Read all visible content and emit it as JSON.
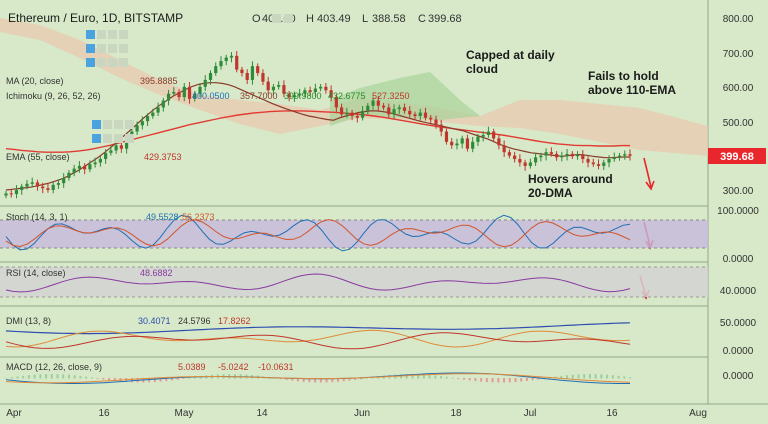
{
  "header": {
    "title": "Ethereum / Euro, 1D, BITSTAMP",
    "ohlc": [
      {
        "k": "O",
        "v": "401.00"
      },
      {
        "k": "H",
        "v": "403.49"
      },
      {
        "k": "L",
        "v": "388.58"
      },
      {
        "k": "C",
        "v": "399.68"
      }
    ]
  },
  "indicators": {
    "ma": {
      "label": "MA (20, close)",
      "value": "395.8885"
    },
    "ichimoku": {
      "label": "Ichimoku (9, 26, 52, 26)",
      "values": [
        "400.0500",
        "357.7000",
        "399.9800",
        "432.6775",
        "527.3250"
      ]
    },
    "ema": {
      "label": "EMA (55, close)",
      "value": "429.3753"
    },
    "stoch": {
      "label": "Stoch (14, 3, 1)",
      "values": [
        "49.5528",
        "56.2373"
      ]
    },
    "rsi": {
      "label": "RSI (14, close)",
      "value": "48.6882"
    },
    "dmi": {
      "label": "DMI (13, 8)",
      "values": [
        "30.4071",
        "24.5796",
        "17.8262"
      ]
    },
    "macd": {
      "label": "MACD (12, 26, close, 9)",
      "values": [
        "5.0389",
        "-5.0242",
        "-10.0631"
      ]
    }
  },
  "annotations": {
    "capped": [
      "Capped at daily",
      "cloud"
    ],
    "fails": [
      "Fails to hold",
      "above 110-EMA"
    ],
    "hovers": [
      "Hovers around",
      "20-DMA"
    ]
  },
  "colors": {
    "background": "#d7e9c8",
    "price_badge": "#e8262b",
    "candle": "#c0352c",
    "ma_line": "#8a3a2a",
    "ema_line": "#e23a33",
    "stoch_band": "#c7b8dd",
    "arrow": "#e8262b"
  },
  "chart_data": [
    {
      "type": "candlestick",
      "title": "Ethereum / Euro, 1D, BITSTAMP",
      "y_ticks": [
        "800.00",
        "700.00",
        "600.00",
        "500.00",
        "400.00",
        "300.00"
      ],
      "ylim": [
        265,
        835
      ],
      "x_ticks": [
        "Apr",
        "16",
        "May",
        "14",
        "Jun",
        "18",
        "Jul",
        "16",
        "Aug"
      ],
      "current_price": "399.68",
      "close": [
        290,
        288,
        300,
        310,
        318,
        322,
        310,
        305,
        300,
        315,
        320,
        335,
        350,
        362,
        370,
        360,
        375,
        380,
        390,
        408,
        415,
        430,
        420,
        445,
        470,
        488,
        500,
        515,
        525,
        540,
        560,
        580,
        585,
        570,
        600,
        565,
        580,
        600,
        620,
        640,
        660,
        675,
        685,
        690,
        650,
        640,
        620,
        660,
        640,
        615,
        590,
        600,
        605,
        580,
        570,
        575,
        580,
        590,
        585,
        595,
        600,
        590,
        570,
        540,
        520,
        525,
        515,
        510,
        530,
        545,
        560,
        545,
        540,
        520,
        535,
        540,
        530,
        520,
        515,
        525,
        510,
        505,
        490,
        470,
        440,
        430,
        435,
        450,
        420,
        440,
        455,
        460,
        470,
        450,
        430,
        410,
        400,
        390,
        380,
        370,
        380,
        395,
        400,
        410,
        405,
        395,
        400,
        405,
        398,
        402,
        390,
        380,
        375,
        370,
        380,
        390,
        395,
        400,
        404,
        399.68
      ],
      "ma20": [
        300,
        302,
        304,
        306,
        308,
        312,
        316,
        320,
        326,
        332,
        340,
        350,
        360,
        372,
        384,
        396,
        410,
        424,
        440,
        456,
        472,
        488,
        505,
        520,
        535,
        548,
        560,
        572,
        582,
        592,
        600,
        606,
        610,
        612,
        612,
        610,
        606,
        600,
        592,
        584,
        576,
        568,
        560,
        552,
        545,
        538,
        532,
        526,
        520,
        515,
        512,
        508,
        505,
        503,
        510,
        515,
        520,
        525,
        528,
        530,
        530,
        528,
        525,
        520,
        515,
        510,
        505,
        500,
        496,
        492,
        488,
        484,
        480,
        476,
        472,
        466,
        460,
        454,
        448,
        440,
        432,
        426,
        420,
        416,
        412,
        408,
        406,
        404,
        402,
        400,
        398,
        400,
        402,
        403,
        401,
        398,
        396,
        394,
        394,
        395,
        396,
        396
      ],
      "ema55": [
        420,
        418,
        415,
        413,
        411,
        410,
        410,
        410,
        411,
        413,
        416,
        420,
        425,
        430,
        436,
        442,
        448,
        454,
        460,
        466,
        472,
        478,
        484,
        490,
        495,
        500,
        505,
        510,
        514,
        518,
        521,
        524,
        526,
        528,
        529,
        530,
        530,
        530,
        529,
        528,
        527,
        526,
        524,
        522,
        520,
        518,
        515,
        512,
        508,
        504,
        500,
        496,
        492,
        488,
        484,
        481,
        478,
        475,
        472,
        469,
        466,
        463,
        460,
        456,
        452,
        448,
        444,
        440,
        437,
        434,
        432,
        430,
        429,
        429,
        428,
        428,
        428,
        429,
        429
      ]
    },
    {
      "type": "line",
      "title": "Stoch (14, 3, 1)",
      "y_ticks": [
        "100.0000",
        "0.0000"
      ],
      "ylim": [
        0,
        100
      ],
      "values": [
        "49.5528",
        "56.2373"
      ]
    },
    {
      "type": "line",
      "title": "RSI (14, close)",
      "y_ticks": [
        "40.0000"
      ],
      "values": [
        "48.6882"
      ]
    },
    {
      "type": "line",
      "title": "DMI (13, 8)",
      "y_ticks": [
        "50.0000",
        "0.0000"
      ],
      "values": [
        "30.4071",
        "24.5796",
        "17.8262"
      ]
    },
    {
      "type": "line",
      "title": "MACD (12, 26, close, 9)",
      "y_ticks": [
        "0.0000"
      ],
      "values": [
        "5.0389",
        "-5.0242",
        "-10.0631"
      ]
    }
  ]
}
